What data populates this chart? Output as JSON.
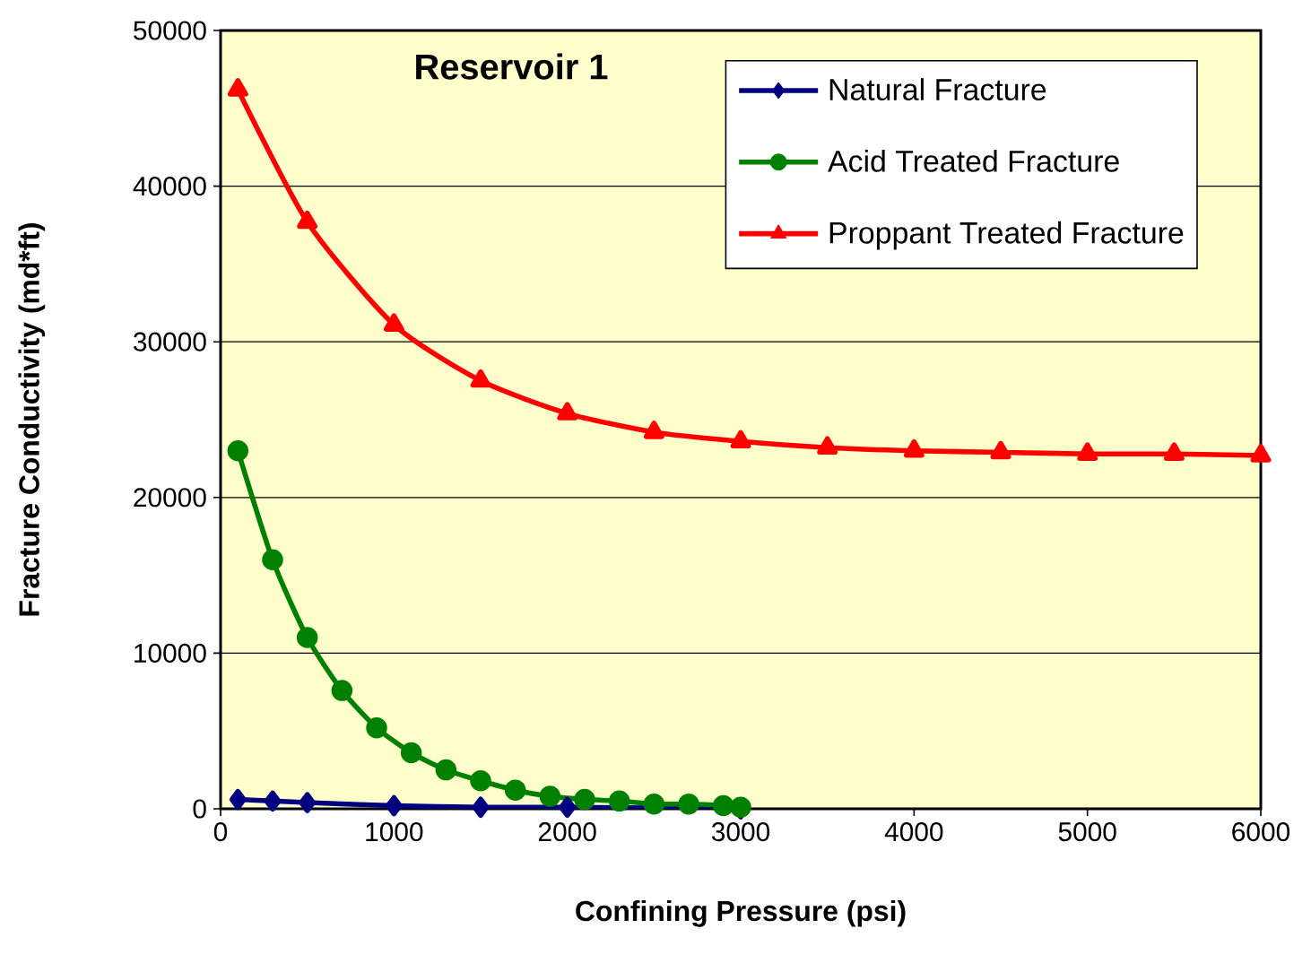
{
  "chart_data": {
    "type": "line",
    "xlabel": "Confining Pressure (psi)",
    "ylabel": "Fracture Conductivity (md*ft)",
    "annotations": [
      "Reservoir 1"
    ],
    "xlim": [
      0,
      6000
    ],
    "xticks": [
      0,
      1000,
      2000,
      3000,
      4000,
      5000,
      6000
    ],
    "ylim": [
      0,
      50000
    ],
    "yticks": [
      0,
      10000,
      20000,
      30000,
      40000,
      50000
    ],
    "grid": "y",
    "legend": "top right",
    "series": [
      {
        "name": "Natural Fracture",
        "color": "#000080",
        "marker": "diamond",
        "x": [
          100,
          300,
          500,
          1000,
          1500,
          2000,
          3000
        ],
        "values": [
          600,
          500,
          400,
          200,
          100,
          100,
          0
        ]
      },
      {
        "name": "Acid Treated Fracture",
        "color": "#008000",
        "marker": "circle",
        "x": [
          100,
          300,
          500,
          700,
          900,
          1100,
          1300,
          1500,
          1700,
          1900,
          2100,
          2300,
          2500,
          2700,
          2900,
          3000
        ],
        "values": [
          23000,
          16000,
          11000,
          7600,
          5200,
          3600,
          2500,
          1800,
          1200,
          800,
          600,
          500,
          300,
          300,
          200,
          100
        ]
      },
      {
        "name": "Proppant Treated Fracture",
        "color": "#FF0000",
        "marker": "triangle",
        "x": [
          100,
          500,
          1000,
          1500,
          2000,
          2500,
          3000,
          3500,
          4000,
          4500,
          5000,
          5500,
          6000
        ],
        "values": [
          46200,
          37700,
          31100,
          27500,
          25400,
          24200,
          23600,
          23200,
          23000,
          22900,
          22800,
          22800,
          22700
        ]
      }
    ]
  }
}
